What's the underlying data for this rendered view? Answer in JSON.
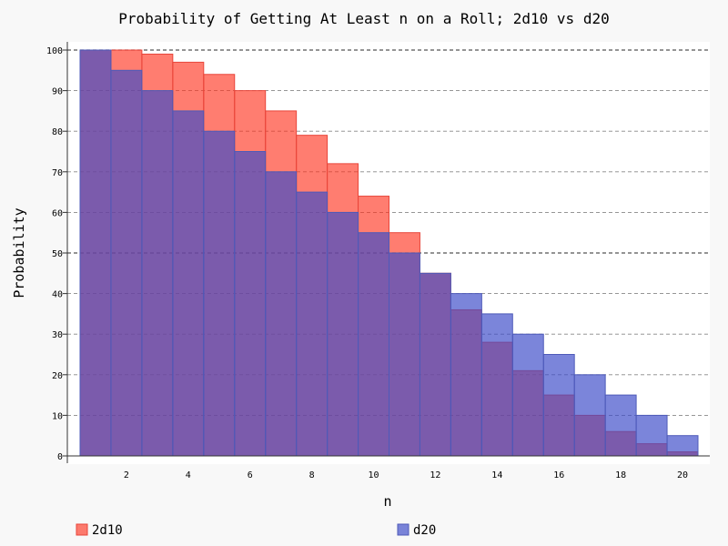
{
  "chart_data": {
    "type": "bar",
    "title": "Probability of Getting At Least n on a Roll; 2d10 vs d20",
    "xlabel": "n",
    "ylabel": "Probability",
    "x": [
      1,
      2,
      3,
      4,
      5,
      6,
      7,
      8,
      9,
      10,
      11,
      12,
      13,
      14,
      15,
      16,
      17,
      18,
      19,
      20
    ],
    "x_ticks": [
      2,
      4,
      6,
      8,
      10,
      12,
      14,
      16,
      18,
      20
    ],
    "y_ticks": [
      0,
      10,
      20,
      30,
      40,
      50,
      60,
      70,
      80,
      90,
      100
    ],
    "ylim": [
      0,
      100
    ],
    "grid": "horizontal dashed",
    "legend_position": "bottom",
    "series": [
      {
        "name": "2d10",
        "color": "#ff6b5b",
        "values": [
          100,
          100,
          99,
          97,
          94,
          90,
          85,
          79,
          72,
          64,
          55,
          45,
          36,
          28,
          21,
          15,
          10,
          6,
          3,
          1
        ]
      },
      {
        "name": "d20",
        "color": "#6674cc",
        "values": [
          100,
          95,
          90,
          85,
          80,
          75,
          70,
          65,
          60,
          55,
          50,
          45,
          40,
          35,
          30,
          25,
          20,
          15,
          10,
          5
        ]
      }
    ]
  }
}
